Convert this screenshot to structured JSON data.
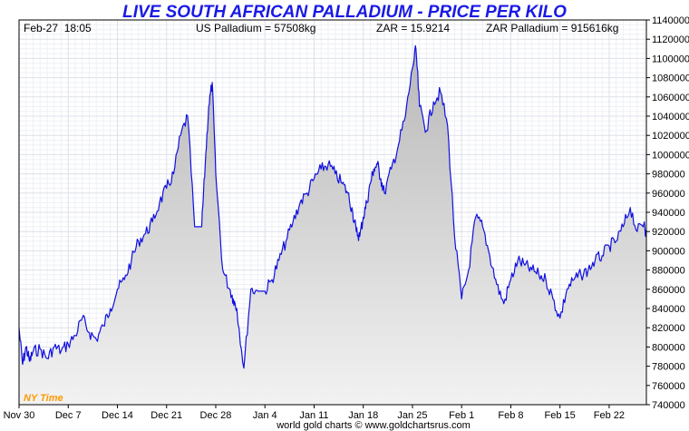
{
  "chart_data": {
    "type": "area",
    "title": "LIVE SOUTH AFRICAN PALLADIUM - PRICE PER KILO",
    "header": {
      "datetime": "Feb-27  18:05",
      "us_price": "US Palladium = 57508kg",
      "fx_rate": "ZAR = 15.9214",
      "zar_price": "ZAR Palladium = 915616kg"
    },
    "timezone_label": "NY Time",
    "footer": "world gold charts © www.goldchartsrus.com",
    "x_tick_labels": [
      "Nov 30",
      "Dec 7",
      "Dec 14",
      "Dec 21",
      "Dec 28",
      "Jan 4",
      "Jan 11",
      "Jan 18",
      "Jan 25",
      "Feb 1",
      "Feb 8",
      "Feb 15",
      "Feb 22"
    ],
    "y_tick_labels": [
      "740000",
      "760000",
      "780000",
      "800000",
      "820000",
      "840000",
      "860000",
      "880000",
      "900000",
      "920000",
      "940000",
      "960000",
      "980000",
      "1000000",
      "1020000",
      "1040000",
      "1060000",
      "1080000",
      "1100000",
      "1120000",
      "1140000"
    ],
    "ylim": [
      740000,
      1140000
    ],
    "x_range_days": [
      0,
      89.3
    ],
    "x_unit": "days from Nov 30",
    "series": [
      {
        "x": [
          0,
          0.5,
          1,
          1.5,
          2,
          3,
          4,
          5,
          6,
          7,
          8,
          9,
          10,
          11,
          12,
          13,
          14,
          15,
          16,
          17,
          18,
          19,
          20,
          21,
          22,
          23,
          24,
          25,
          25.5,
          26,
          26.5,
          27,
          27.5,
          28,
          29,
          30,
          30.5,
          31,
          32,
          33,
          34,
          35,
          36,
          37,
          38,
          39,
          40,
          41,
          42,
          43,
          44,
          45,
          46,
          46.8,
          47.5,
          48,
          48.5,
          49,
          49.5,
          50,
          50.5,
          51,
          51.5,
          52,
          53,
          54,
          55,
          56,
          56.5,
          57,
          58,
          59,
          60,
          61,
          62,
          63,
          64,
          65,
          66,
          67,
          68,
          69,
          70,
          71,
          72,
          73,
          74,
          75,
          76,
          77,
          78,
          79,
          80,
          81,
          82,
          83,
          84,
          85,
          86,
          87,
          88,
          89,
          89.3
        ],
        "values": [
          820000,
          782000,
          800000,
          785000,
          795000,
          798000,
          788000,
          800000,
          796000,
          803000,
          812000,
          830000,
          815000,
          808000,
          822000,
          840000,
          860000,
          870000,
          890000,
          910000,
          918000,
          930000,
          950000,
          965000,
          980000,
          1020000,
          1040000,
          925000,
          925000,
          925000,
          990000,
          1050000,
          1075000,
          980000,
          880000,
          860000,
          850000,
          840000,
          778000,
          860000,
          858000,
          858000,
          870000,
          890000,
          910000,
          930000,
          950000,
          960000,
          975000,
          985000,
          990000,
          980000,
          970000,
          960000,
          940000,
          920000,
          915000,
          935000,
          950000,
          970000,
          985000,
          990000,
          975000,
          960000,
          985000,
          1010000,
          1040000,
          1090000,
          1110000,
          1050000,
          1025000,
          1055000,
          1065000,
          1030000,
          915000,
          850000,
          880000,
          935000,
          925000,
          895000,
          865000,
          845000,
          870000,
          890000,
          885000,
          880000,
          875000,
          870000,
          850000,
          830000,
          860000,
          870000,
          875000,
          880000,
          890000,
          895000,
          905000,
          910000,
          925000,
          945000,
          920000,
          930000,
          915000
        ]
      }
    ]
  }
}
